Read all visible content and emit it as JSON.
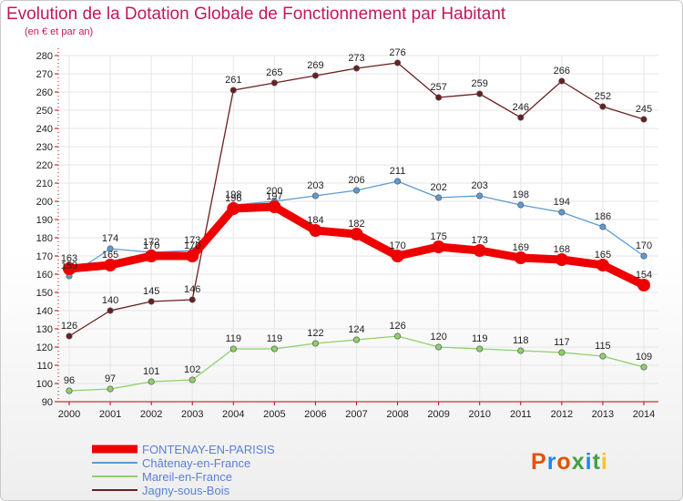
{
  "header": {
    "title": "Evolution de la Dotation Globale de Fonctionnement par Habitant",
    "subtitle": "(en € et par an)"
  },
  "logo": {
    "text": "Proxiti",
    "colors": [
      "#e65100",
      "#1e88e5",
      "#e65100",
      "#43a047",
      "#1e88e5",
      "#43a047",
      "#fbc02d"
    ]
  },
  "chart_data": {
    "type": "line",
    "x": [
      2000,
      2001,
      2002,
      2003,
      2004,
      2005,
      2006,
      2007,
      2008,
      2009,
      2010,
      2011,
      2012,
      2013,
      2014
    ],
    "ylim": [
      90,
      280
    ],
    "yticks": [
      90,
      100,
      110,
      120,
      130,
      140,
      150,
      160,
      170,
      180,
      190,
      200,
      210,
      220,
      230,
      240,
      250,
      260,
      270,
      280
    ],
    "grid": true,
    "legend_position": "bottom-left",
    "series": [
      {
        "name": "Jagny-sous-Bois",
        "color": "#6b1f1f",
        "values": [
          126,
          140,
          145,
          146,
          261,
          265,
          269,
          273,
          276,
          257,
          259,
          246,
          266,
          252,
          245
        ]
      },
      {
        "name": "Mareil-en-France",
        "color": "#8fd16a",
        "values": [
          96,
          97,
          101,
          102,
          119,
          119,
          122,
          124,
          126,
          120,
          119,
          118,
          117,
          115,
          109
        ]
      },
      {
        "name": "Châtenay-en-France",
        "color": "#5b9bd5",
        "values": [
          159,
          174,
          172,
          173,
          198,
          200,
          203,
          206,
          211,
          202,
          203,
          198,
          194,
          186,
          170
        ]
      },
      {
        "name": "FONTENAY-EN-PARISIS",
        "color": "#ee0000",
        "values": [
          163,
          165,
          170,
          170,
          196,
          197,
          184,
          182,
          170,
          175,
          173,
          169,
          168,
          165,
          154
        ]
      }
    ],
    "data_labels": [
      {
        "series": 0,
        "labels": [
          "126",
          "140",
          "145",
          "146",
          "261",
          "265",
          "269",
          "273",
          "276",
          "257",
          "259",
          "246",
          "266",
          "252",
          "245"
        ]
      },
      {
        "series": 1,
        "labels": [
          "96",
          "97",
          "101",
          "102",
          "119",
          "119",
          "122",
          "124",
          "126",
          "120",
          "119",
          "118",
          "117",
          "115",
          "109"
        ]
      },
      {
        "series": 2,
        "labels": [
          "159",
          "174",
          "172",
          "173",
          "198",
          "200",
          "203",
          "206",
          "211",
          "202",
          "203",
          "198",
          "194",
          "186",
          "170"
        ]
      },
      {
        "series": 3,
        "labels": [
          "163",
          "165",
          "170",
          "170",
          "196",
          "197",
          "184",
          "182",
          "170",
          "175",
          "173",
          "169",
          "168",
          "165",
          "154"
        ]
      }
    ],
    "legend_order": [
      3,
      2,
      1,
      0
    ]
  }
}
